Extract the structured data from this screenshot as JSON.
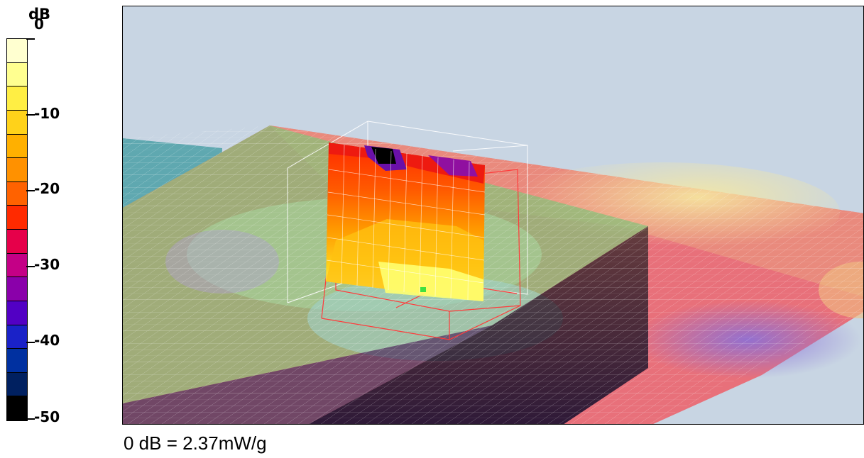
{
  "legend": {
    "unit": "dB",
    "labels": [
      "0",
      "-10",
      "-20",
      "-30",
      "-40",
      "-50"
    ],
    "colors": [
      "#ffffd0",
      "#ffff90",
      "#ffee44",
      "#ffd21a",
      "#ffb000",
      "#ff9100",
      "#ff6200",
      "#ff2a00",
      "#e6004a",
      "#c40086",
      "#8a00aa",
      "#5200c4",
      "#1a22c8",
      "#0030a0",
      "#002060",
      "#000000"
    ]
  },
  "plot": {
    "background": "#c8d5e3",
    "grid_color": "#ffffff",
    "box_color": "#ff3030"
  },
  "caption": "0 dB = 2.37mW/g"
}
